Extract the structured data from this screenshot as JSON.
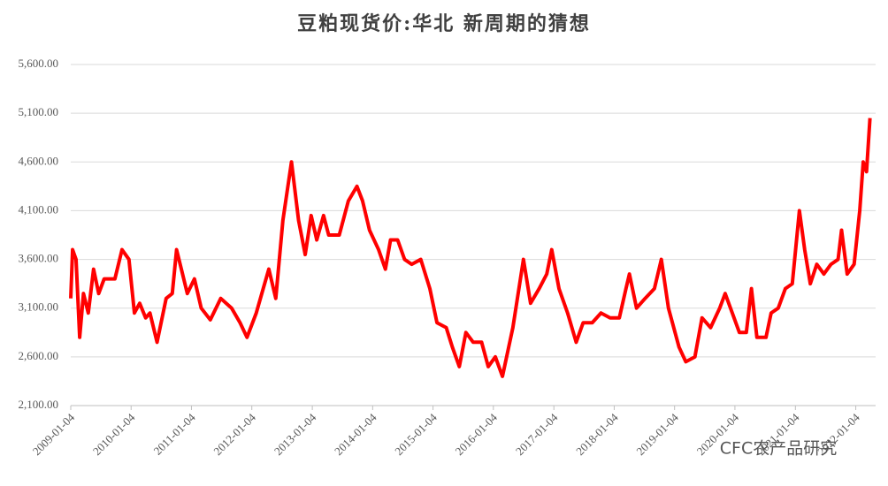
{
  "chart_data": {
    "type": "line",
    "title": "豆粕现货价:华北 新周期的猜想",
    "watermark": "CFC农产品研究",
    "color": "#ff0000",
    "grid": true,
    "xlim": [
      "2009-01-04",
      "2022-05-04"
    ],
    "xticks": [
      "2009-01-04",
      "2010-01-04",
      "2011-01-04",
      "2012-01-04",
      "2013-01-04",
      "2014-01-04",
      "2015-01-04",
      "2016-01-04",
      "2017-01-04",
      "2018-01-04",
      "2019-01-04",
      "2020-01-04",
      "2021-01-04",
      "2022-01-04"
    ],
    "ylim": [
      2100,
      5600
    ],
    "yticks": [
      {
        "value": 2100,
        "label": "2,100.00"
      },
      {
        "value": 2600,
        "label": "2,600.00"
      },
      {
        "value": 3100,
        "label": "3,100.00"
      },
      {
        "value": 3600,
        "label": "3,600.00"
      },
      {
        "value": 4100,
        "label": "4,100.00"
      },
      {
        "value": 4600,
        "label": "4,600.00"
      },
      {
        "value": 5100,
        "label": "5,100.00"
      },
      {
        "value": 5600,
        "label": "5,600.00"
      }
    ],
    "x": [
      "2009-01-04",
      "2009-01-15",
      "2009-02-05",
      "2009-02-27",
      "2009-03-22",
      "2009-04-20",
      "2009-05-22",
      "2009-06-22",
      "2009-07-25",
      "2009-09-28",
      "2009-11-10",
      "2009-12-22",
      "2010-01-24",
      "2010-02-25",
      "2010-04-02",
      "2010-04-28",
      "2010-06-10",
      "2010-08-04",
      "2010-09-10",
      "2010-10-06",
      "2010-11-04",
      "2010-12-10",
      "2011-01-22",
      "2011-03-04",
      "2011-04-28",
      "2011-06-30",
      "2011-09-04",
      "2011-10-25",
      "2011-12-06",
      "2012-01-31",
      "2012-03-13",
      "2012-04-16",
      "2012-05-28",
      "2012-07-10",
      "2012-08-31",
      "2012-10-13",
      "2012-11-22",
      "2012-12-28",
      "2013-01-31",
      "2013-03-13",
      "2013-04-13",
      "2013-06-16",
      "2013-08-10",
      "2013-10-01",
      "2013-11-04",
      "2013-12-16",
      "2014-02-09",
      "2014-03-22",
      "2014-04-22",
      "2014-06-04",
      "2014-07-16",
      "2014-08-28",
      "2014-10-22",
      "2014-12-16",
      "2015-01-28",
      "2015-03-25",
      "2015-05-01",
      "2015-06-12",
      "2015-07-22",
      "2015-09-04",
      "2015-10-25",
      "2015-12-04",
      "2016-01-16",
      "2016-02-28",
      "2016-05-01",
      "2016-07-04",
      "2016-08-16",
      "2016-10-07",
      "2016-11-22",
      "2016-12-22",
      "2017-02-04",
      "2017-03-28",
      "2017-05-19",
      "2017-06-30",
      "2017-08-24",
      "2017-10-16",
      "2017-12-10",
      "2018-02-04",
      "2018-03-16",
      "2018-04-06",
      "2018-05-19",
      "2018-07-10",
      "2018-09-04",
      "2018-10-16",
      "2018-11-28",
      "2019-01-31",
      "2019-03-13",
      "2019-05-07",
      "2019-06-19",
      "2019-08-10",
      "2019-10-04",
      "2019-11-06",
      "2019-12-19",
      "2020-01-31",
      "2020-03-13",
      "2020-04-13",
      "2020-05-16",
      "2020-07-10",
      "2020-08-10",
      "2020-09-22",
      "2020-11-04",
      "2020-12-16",
      "2021-01-28",
      "2021-03-01",
      "2021-04-04",
      "2021-05-13",
      "2021-06-25",
      "2021-08-07",
      "2021-09-19",
      "2021-10-10",
      "2021-11-13",
      "2021-12-25",
      "2022-01-28",
      "2022-02-18",
      "2022-03-10",
      "2022-03-31"
    ],
    "values": [
      3200,
      3700,
      3600,
      2800,
      3250,
      3050,
      3500,
      3250,
      3400,
      3400,
      3700,
      3600,
      3050,
      3150,
      3000,
      3050,
      2750,
      3200,
      3250,
      3700,
      3500,
      3250,
      3400,
      3100,
      2980,
      3200,
      3100,
      2950,
      2800,
      3050,
      3300,
      3500,
      3200,
      4000,
      4600,
      4000,
      3650,
      4050,
      3800,
      4050,
      3850,
      3850,
      4200,
      4350,
      4200,
      3900,
      3700,
      3500,
      3800,
      3800,
      3600,
      3550,
      3600,
      3300,
      2950,
      2900,
      2700,
      2500,
      2850,
      2750,
      2750,
      2500,
      2600,
      2400,
      2900,
      3600,
      3150,
      3300,
      3450,
      3700,
      3300,
      3050,
      2750,
      2950,
      2950,
      3050,
      3000,
      3000,
      3300,
      3450,
      3100,
      3200,
      3300,
      3600,
      3100,
      2700,
      2550,
      2600,
      3000,
      2900,
      3100,
      3250,
      3050,
      2850,
      2850,
      3300,
      2800,
      2800,
      3050,
      3100,
      3300,
      3350,
      4100,
      3700,
      3350,
      3550,
      3450,
      3550,
      3600,
      3900,
      3450,
      3550,
      4100,
      4600,
      4500,
      5050
    ]
  }
}
